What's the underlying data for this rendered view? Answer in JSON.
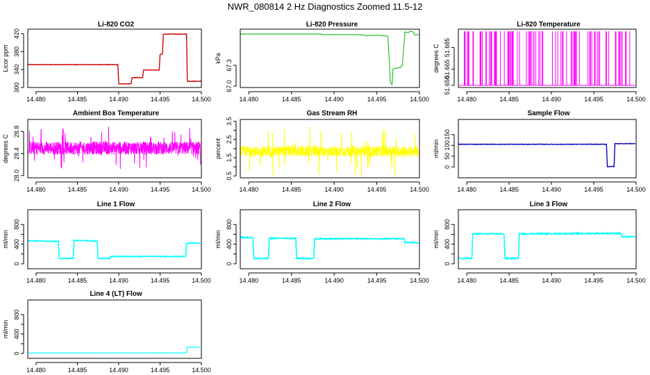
{
  "page_title": "NWR_080814  2 Hz Diagnostics Zoomed 11.5-12",
  "chart_data": [
    {
      "type": "line",
      "title": "Li-820 CO2",
      "ylabel": "Licor ppm",
      "color": "#d00000",
      "lw": 1.4,
      "xlim": [
        14.479,
        14.5
      ],
      "ylim": [
        300,
        430
      ],
      "xticks": [
        "14.480",
        "14.485",
        "14.490",
        "14.495",
        "14.500"
      ],
      "xtick_values": [
        14.48,
        14.485,
        14.49,
        14.495,
        14.5
      ],
      "yticks": [
        "300",
        "340",
        "380",
        "420"
      ],
      "ytick_values": [
        300,
        340,
        380,
        420
      ],
      "points": [
        [
          14.479,
          351
        ],
        [
          14.4899,
          351
        ],
        [
          14.49,
          308
        ],
        [
          14.4915,
          308
        ],
        [
          14.4916,
          322
        ],
        [
          14.4929,
          322
        ],
        [
          14.493,
          339
        ],
        [
          14.4949,
          339
        ],
        [
          14.495,
          374
        ],
        [
          14.4953,
          374
        ],
        [
          14.4954,
          419
        ],
        [
          14.4982,
          419
        ],
        [
          14.4983,
          314
        ],
        [
          14.5,
          314
        ]
      ],
      "noise": 0.6
    },
    {
      "type": "line",
      "title": "Li-820 Pressure",
      "ylabel": "kPa",
      "color": "#00b000",
      "lw": 1,
      "xlim": [
        14.479,
        14.5
      ],
      "ylim": [
        66.98,
        67.82
      ],
      "xticks": [
        "14.480",
        "14.485",
        "14.490",
        "14.495",
        "14.500"
      ],
      "xtick_values": [
        14.48,
        14.485,
        14.49,
        14.495,
        14.5
      ],
      "yticks": [
        "67.0",
        "67.3"
      ],
      "ytick_values": [
        67.0,
        67.3
      ],
      "points": [
        [
          14.479,
          67.75
        ],
        [
          14.4885,
          67.75
        ],
        [
          14.4886,
          67.74
        ],
        [
          14.4932,
          67.74
        ],
        [
          14.4935,
          67.73
        ],
        [
          14.4955,
          67.73
        ],
        [
          14.4963,
          67.72
        ],
        [
          14.4966,
          67.05
        ],
        [
          14.4968,
          67.02
        ],
        [
          14.4969,
          67.25
        ],
        [
          14.4978,
          67.27
        ],
        [
          14.498,
          67.3
        ],
        [
          14.4983,
          67.78
        ],
        [
          14.4987,
          67.77
        ],
        [
          14.4989,
          67.79
        ],
        [
          14.4993,
          67.78
        ],
        [
          14.4994,
          67.74
        ],
        [
          14.4999,
          67.74
        ]
      ],
      "noise": 0.002
    },
    {
      "type": "spikes",
      "title": "Li-820 Temperature",
      "ylabel": "degrees C",
      "color": "#ff00ff",
      "lw": 1,
      "xlim": [
        14.479,
        14.5
      ],
      "ylim": [
        51.648,
        51.702
      ],
      "xticks": [
        "14.480",
        "14.485",
        "14.490",
        "14.495",
        "14.500"
      ],
      "xtick_values": [
        14.48,
        14.485,
        14.49,
        14.495,
        14.5
      ],
      "yticks": [
        "51.650",
        "51.665",
        "51.685"
      ],
      "ytick_values": [
        51.65,
        51.665,
        51.685
      ],
      "baseline": 51.65,
      "spike_top": 51.7,
      "spike_count": 90
    },
    {
      "type": "noise",
      "title": "Ambient Box Temperature",
      "ylabel": "degrees C",
      "color": "#ff00ff",
      "lw": 1,
      "xlim": [
        14.479,
        14.5
      ],
      "ylim": [
        27.96,
        29.02
      ],
      "xticks": [
        "14.480",
        "14.485",
        "14.490",
        "14.495",
        "14.500"
      ],
      "xtick_values": [
        14.48,
        14.485,
        14.49,
        14.495,
        14.5
      ],
      "yticks": [
        "28.0",
        "28.4",
        "28.8"
      ],
      "ytick_values": [
        28.0,
        28.4,
        28.8
      ],
      "mean": 28.5,
      "amp": 0.12,
      "spike_amp": 0.4
    },
    {
      "type": "noise",
      "title": "Gas Stream RH",
      "ylabel": "percent",
      "color": "#ffff00",
      "lw": 1,
      "xlim": [
        14.479,
        14.5
      ],
      "ylim": [
        0.4,
        3.6
      ],
      "xticks": [
        "14.480",
        "14.485",
        "14.490",
        "14.495",
        "14.500"
      ],
      "xtick_values": [
        14.48,
        14.485,
        14.49,
        14.495,
        14.5
      ],
      "yticks": [
        "0.5",
        "1.5",
        "2.5",
        "3.5"
      ],
      "ytick_values": [
        0.5,
        1.0,
        1.5,
        2.0,
        2.5,
        3.0,
        3.5
      ],
      "ytick_labels": [
        "0.5",
        "",
        "1.5",
        "",
        "2.5",
        "",
        "3.5"
      ],
      "mean": 1.85,
      "amp": 0.3,
      "spike_amp": 1.4
    },
    {
      "type": "line",
      "title": "Sample Flow",
      "ylabel": "ml/min",
      "color": "#0000c0",
      "lw": 1.4,
      "xlim": [
        14.479,
        14.5
      ],
      "ylim": [
        -50,
        220
      ],
      "xticks": [
        "14.480",
        "14.485",
        "14.490",
        "14.495",
        "14.500"
      ],
      "xtick_values": [
        14.48,
        14.485,
        14.49,
        14.495,
        14.5
      ],
      "yticks": [
        "0",
        "50",
        "100",
        "150"
      ],
      "ytick_values": [
        0,
        50,
        100,
        150
      ],
      "points": [
        [
          14.479,
          105
        ],
        [
          14.4965,
          105
        ],
        [
          14.4966,
          2
        ],
        [
          14.4974,
          2
        ],
        [
          14.4975,
          108
        ],
        [
          14.4999,
          108
        ]
      ],
      "noise": 1.2
    },
    {
      "type": "line",
      "title": "Line 1 Flow",
      "ylabel": "ml/min",
      "color": "#00ffff",
      "lw": 1.6,
      "xlim": [
        14.479,
        14.5
      ],
      "ylim": [
        -100,
        1100
      ],
      "xticks": [
        "14.480",
        "14.485",
        "14.490",
        "14.495",
        "14.500"
      ],
      "xtick_values": [
        14.48,
        14.485,
        14.49,
        14.495,
        14.5
      ],
      "yticks": [
        "0",
        "400",
        "800"
      ],
      "ytick_values": [
        0,
        200,
        400,
        600,
        800
      ],
      "ytick_labels": [
        "0",
        "",
        "400",
        "",
        "800"
      ],
      "points": [
        [
          14.479,
          470
        ],
        [
          14.4827,
          455
        ],
        [
          14.4828,
          110
        ],
        [
          14.4845,
          110
        ],
        [
          14.4846,
          480
        ],
        [
          14.4874,
          460
        ],
        [
          14.4875,
          110
        ],
        [
          14.4889,
          110
        ],
        [
          14.489,
          150
        ],
        [
          14.4981,
          150
        ],
        [
          14.4982,
          420
        ],
        [
          14.4999,
          420
        ]
      ],
      "noise": 8
    },
    {
      "type": "line",
      "title": "Line 2 Flow",
      "ylabel": "ml/min",
      "color": "#00ffff",
      "lw": 1.6,
      "xlim": [
        14.479,
        14.5
      ],
      "ylim": [
        -100,
        1100
      ],
      "xticks": [
        "14.480",
        "14.485",
        "14.490",
        "14.495",
        "14.500"
      ],
      "xtick_values": [
        14.48,
        14.485,
        14.49,
        14.495,
        14.5
      ],
      "yticks": [
        "0",
        "400",
        "800"
      ],
      "ytick_values": [
        0,
        200,
        400,
        600,
        800
      ],
      "ytick_labels": [
        "0",
        "",
        "400",
        "",
        "800"
      ],
      "points": [
        [
          14.479,
          540
        ],
        [
          14.4805,
          530
        ],
        [
          14.4806,
          110
        ],
        [
          14.4823,
          110
        ],
        [
          14.4824,
          520
        ],
        [
          14.4855,
          520
        ],
        [
          14.4856,
          110
        ],
        [
          14.4876,
          110
        ],
        [
          14.4877,
          510
        ],
        [
          14.4982,
          510
        ],
        [
          14.4983,
          430
        ],
        [
          14.4999,
          430
        ]
      ],
      "noise": 12
    },
    {
      "type": "line",
      "title": "Line 3 Flow",
      "ylabel": "ml/min",
      "color": "#00ffff",
      "lw": 1.6,
      "xlim": [
        14.479,
        14.5
      ],
      "ylim": [
        -100,
        1100
      ],
      "xticks": [
        "14.480",
        "14.485",
        "14.490",
        "14.495",
        "14.500"
      ],
      "xtick_values": [
        14.48,
        14.485,
        14.49,
        14.495,
        14.5
      ],
      "yticks": [
        "0",
        "400",
        "800"
      ],
      "ytick_values": [
        0,
        200,
        400,
        600,
        800
      ],
      "ytick_labels": [
        "0",
        "",
        "400",
        "",
        "800"
      ],
      "points": [
        [
          14.479,
          110
        ],
        [
          14.4806,
          110
        ],
        [
          14.4807,
          610
        ],
        [
          14.4844,
          610
        ],
        [
          14.4845,
          110
        ],
        [
          14.4861,
          110
        ],
        [
          14.4862,
          610
        ],
        [
          14.4982,
          620
        ],
        [
          14.4983,
          550
        ],
        [
          14.4999,
          550
        ]
      ],
      "noise": 14
    },
    {
      "type": "line",
      "title": "Line 4 (LT) Flow",
      "ylabel": "ml/min",
      "color": "#00ffff",
      "lw": 1.2,
      "xlim": [
        14.479,
        14.5
      ],
      "ylim": [
        -100,
        1100
      ],
      "xticks": [
        "14.480",
        "14.485",
        "14.490",
        "14.495",
        "14.500"
      ],
      "xtick_values": [
        14.48,
        14.485,
        14.49,
        14.495,
        14.5
      ],
      "yticks": [
        "0",
        "400",
        "800"
      ],
      "ytick_values": [
        0,
        200,
        400,
        600,
        800
      ],
      "ytick_labels": [
        "0",
        "",
        "400",
        "",
        "800"
      ],
      "points": [
        [
          14.479,
          10
        ],
        [
          14.4982,
          12
        ],
        [
          14.4983,
          130
        ],
        [
          14.4999,
          130
        ]
      ],
      "noise": 2
    }
  ]
}
